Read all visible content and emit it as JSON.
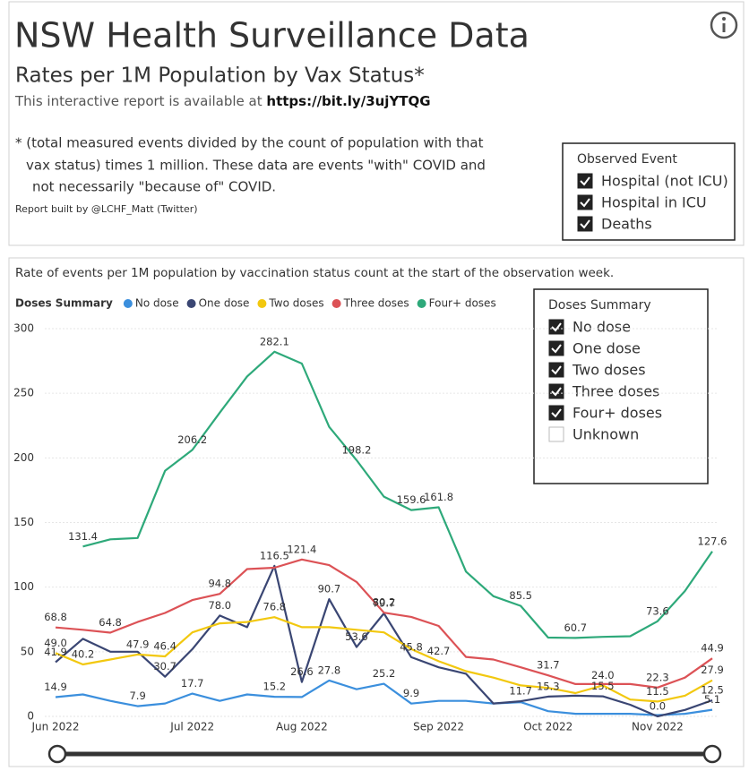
{
  "header": {
    "title": "NSW Health Surveillance Data",
    "subtitle": "Rates per 1M Population by Vax Status*",
    "link_prefix": "This interactive report is available at",
    "link": "https://bit.ly/3ujYTQG",
    "footnote": [
      "* (total measured events divided by the count of population with that",
      "vax status) times 1 million.  These data are events \"with\" COVID and",
      "not necessarily \"because of\" COVID."
    ],
    "credit": "Report built by @LCHF_Matt (Twitter)"
  },
  "observed_event": {
    "title": "Observed Event",
    "items": [
      {
        "label": "Hospital (not ICU)",
        "checked": true
      },
      {
        "label": "Hospital in ICU",
        "checked": true
      },
      {
        "label": "Deaths",
        "checked": true
      }
    ]
  },
  "doses_slicer": {
    "title": "Doses Summary",
    "items": [
      {
        "label": "No dose",
        "checked": true
      },
      {
        "label": "One dose",
        "checked": true
      },
      {
        "label": "Two doses",
        "checked": true
      },
      {
        "label": "Three doses",
        "checked": true
      },
      {
        "label": "Four+ doses",
        "checked": true
      },
      {
        "label": "Unknown",
        "checked": false
      }
    ]
  },
  "chart_data": {
    "type": "line",
    "title": "Rate of events per 1M population by vaccination status count at the start of the observation week.",
    "legend_title": "Doses Summary",
    "categories": [
      "Jun 2022",
      null,
      null,
      null,
      null,
      "Jul 2022",
      null,
      null,
      null,
      "Aug 2022",
      null,
      null,
      null,
      null,
      "Sep 2022",
      null,
      null,
      null,
      "Oct 2022",
      null,
      null,
      null,
      "Nov 2022",
      null,
      null
    ],
    "ylim": [
      0,
      300
    ],
    "yticks": [
      0,
      50,
      100,
      150,
      200,
      250,
      300
    ],
    "grid": true,
    "series": [
      {
        "name": "No dose",
        "color": "#3b8fdd",
        "values": [
          14.9,
          17,
          12,
          7.9,
          10,
          17.7,
          12,
          17,
          15.2,
          15,
          27.8,
          21,
          25.2,
          9.9,
          12,
          12,
          10,
          11,
          4,
          2,
          2,
          2,
          1,
          2,
          5.1
        ],
        "value_labels": [
          "14.9",
          null,
          null,
          "7.9",
          null,
          "17.7",
          null,
          null,
          "15.2",
          null,
          "27.8",
          null,
          "25.2",
          "9.9",
          null,
          null,
          null,
          null,
          null,
          null,
          null,
          null,
          null,
          null,
          "5.1"
        ]
      },
      {
        "name": "One dose",
        "color": "#3a4673",
        "values": [
          41.9,
          60,
          50,
          50,
          30.7,
          52,
          78.0,
          69,
          116.5,
          26.6,
          90.7,
          53.6,
          79.7,
          45.8,
          38,
          33,
          10,
          11.7,
          15.3,
          16,
          15.5,
          9,
          0,
          5,
          12.5
        ],
        "value_labels": [
          "41.9",
          null,
          null,
          null,
          "30.7",
          null,
          "78.0",
          null,
          "116.5",
          "26.6",
          "90.7",
          "53.6",
          "79.7",
          "45.8",
          null,
          null,
          null,
          "11.7",
          "15.3",
          null,
          "15.5",
          null,
          "0.0",
          null,
          "12.5"
        ]
      },
      {
        "name": "Two doses",
        "color": "#f2c80f",
        "values": [
          49.0,
          40.2,
          44,
          47.9,
          46.4,
          65,
          72,
          73,
          76.8,
          69,
          69,
          67,
          65,
          52,
          42.7,
          35,
          30,
          24,
          22,
          18,
          24.0,
          13,
          11.5,
          16,
          27.9
        ],
        "value_labels": [
          "49.0",
          "40.2",
          null,
          "47.9",
          "46.4",
          null,
          null,
          null,
          "76.8",
          null,
          null,
          null,
          null,
          null,
          "42.7",
          null,
          null,
          null,
          null,
          null,
          "24.0",
          null,
          "11.5",
          null,
          "27.9"
        ]
      },
      {
        "name": "Three doses",
        "color": "#dc5256",
        "values": [
          68.8,
          67,
          64.8,
          73,
          80,
          90,
          94.8,
          114,
          115,
          121.4,
          117,
          104,
          80.2,
          77,
          70,
          46,
          44,
          38,
          31.7,
          25,
          25,
          25,
          22.3,
          30,
          44.9
        ],
        "value_labels": [
          "68.8",
          null,
          "64.8",
          null,
          null,
          null,
          "94.8",
          null,
          null,
          "121.4",
          null,
          null,
          "80.2",
          null,
          null,
          null,
          null,
          null,
          "31.7",
          null,
          null,
          null,
          "22.3",
          null,
          "44.9"
        ]
      },
      {
        "name": "Four+ doses",
        "color": "#2ea97a",
        "values": [
          null,
          131.4,
          137,
          138,
          190,
          206.2,
          235,
          263,
          282.1,
          273,
          224,
          198.2,
          170,
          159.6,
          161.8,
          112,
          93,
          85.5,
          61,
          60.7,
          61.5,
          62,
          73.6,
          97,
          127.6
        ],
        "value_labels": [
          null,
          "131.4",
          null,
          null,
          null,
          "206.2",
          null,
          null,
          "282.1",
          null,
          null,
          "198.2",
          null,
          "159.6",
          "161.8",
          null,
          null,
          "85.5",
          null,
          "60.7",
          null,
          null,
          "73.6",
          null,
          "127.6"
        ]
      }
    ]
  }
}
